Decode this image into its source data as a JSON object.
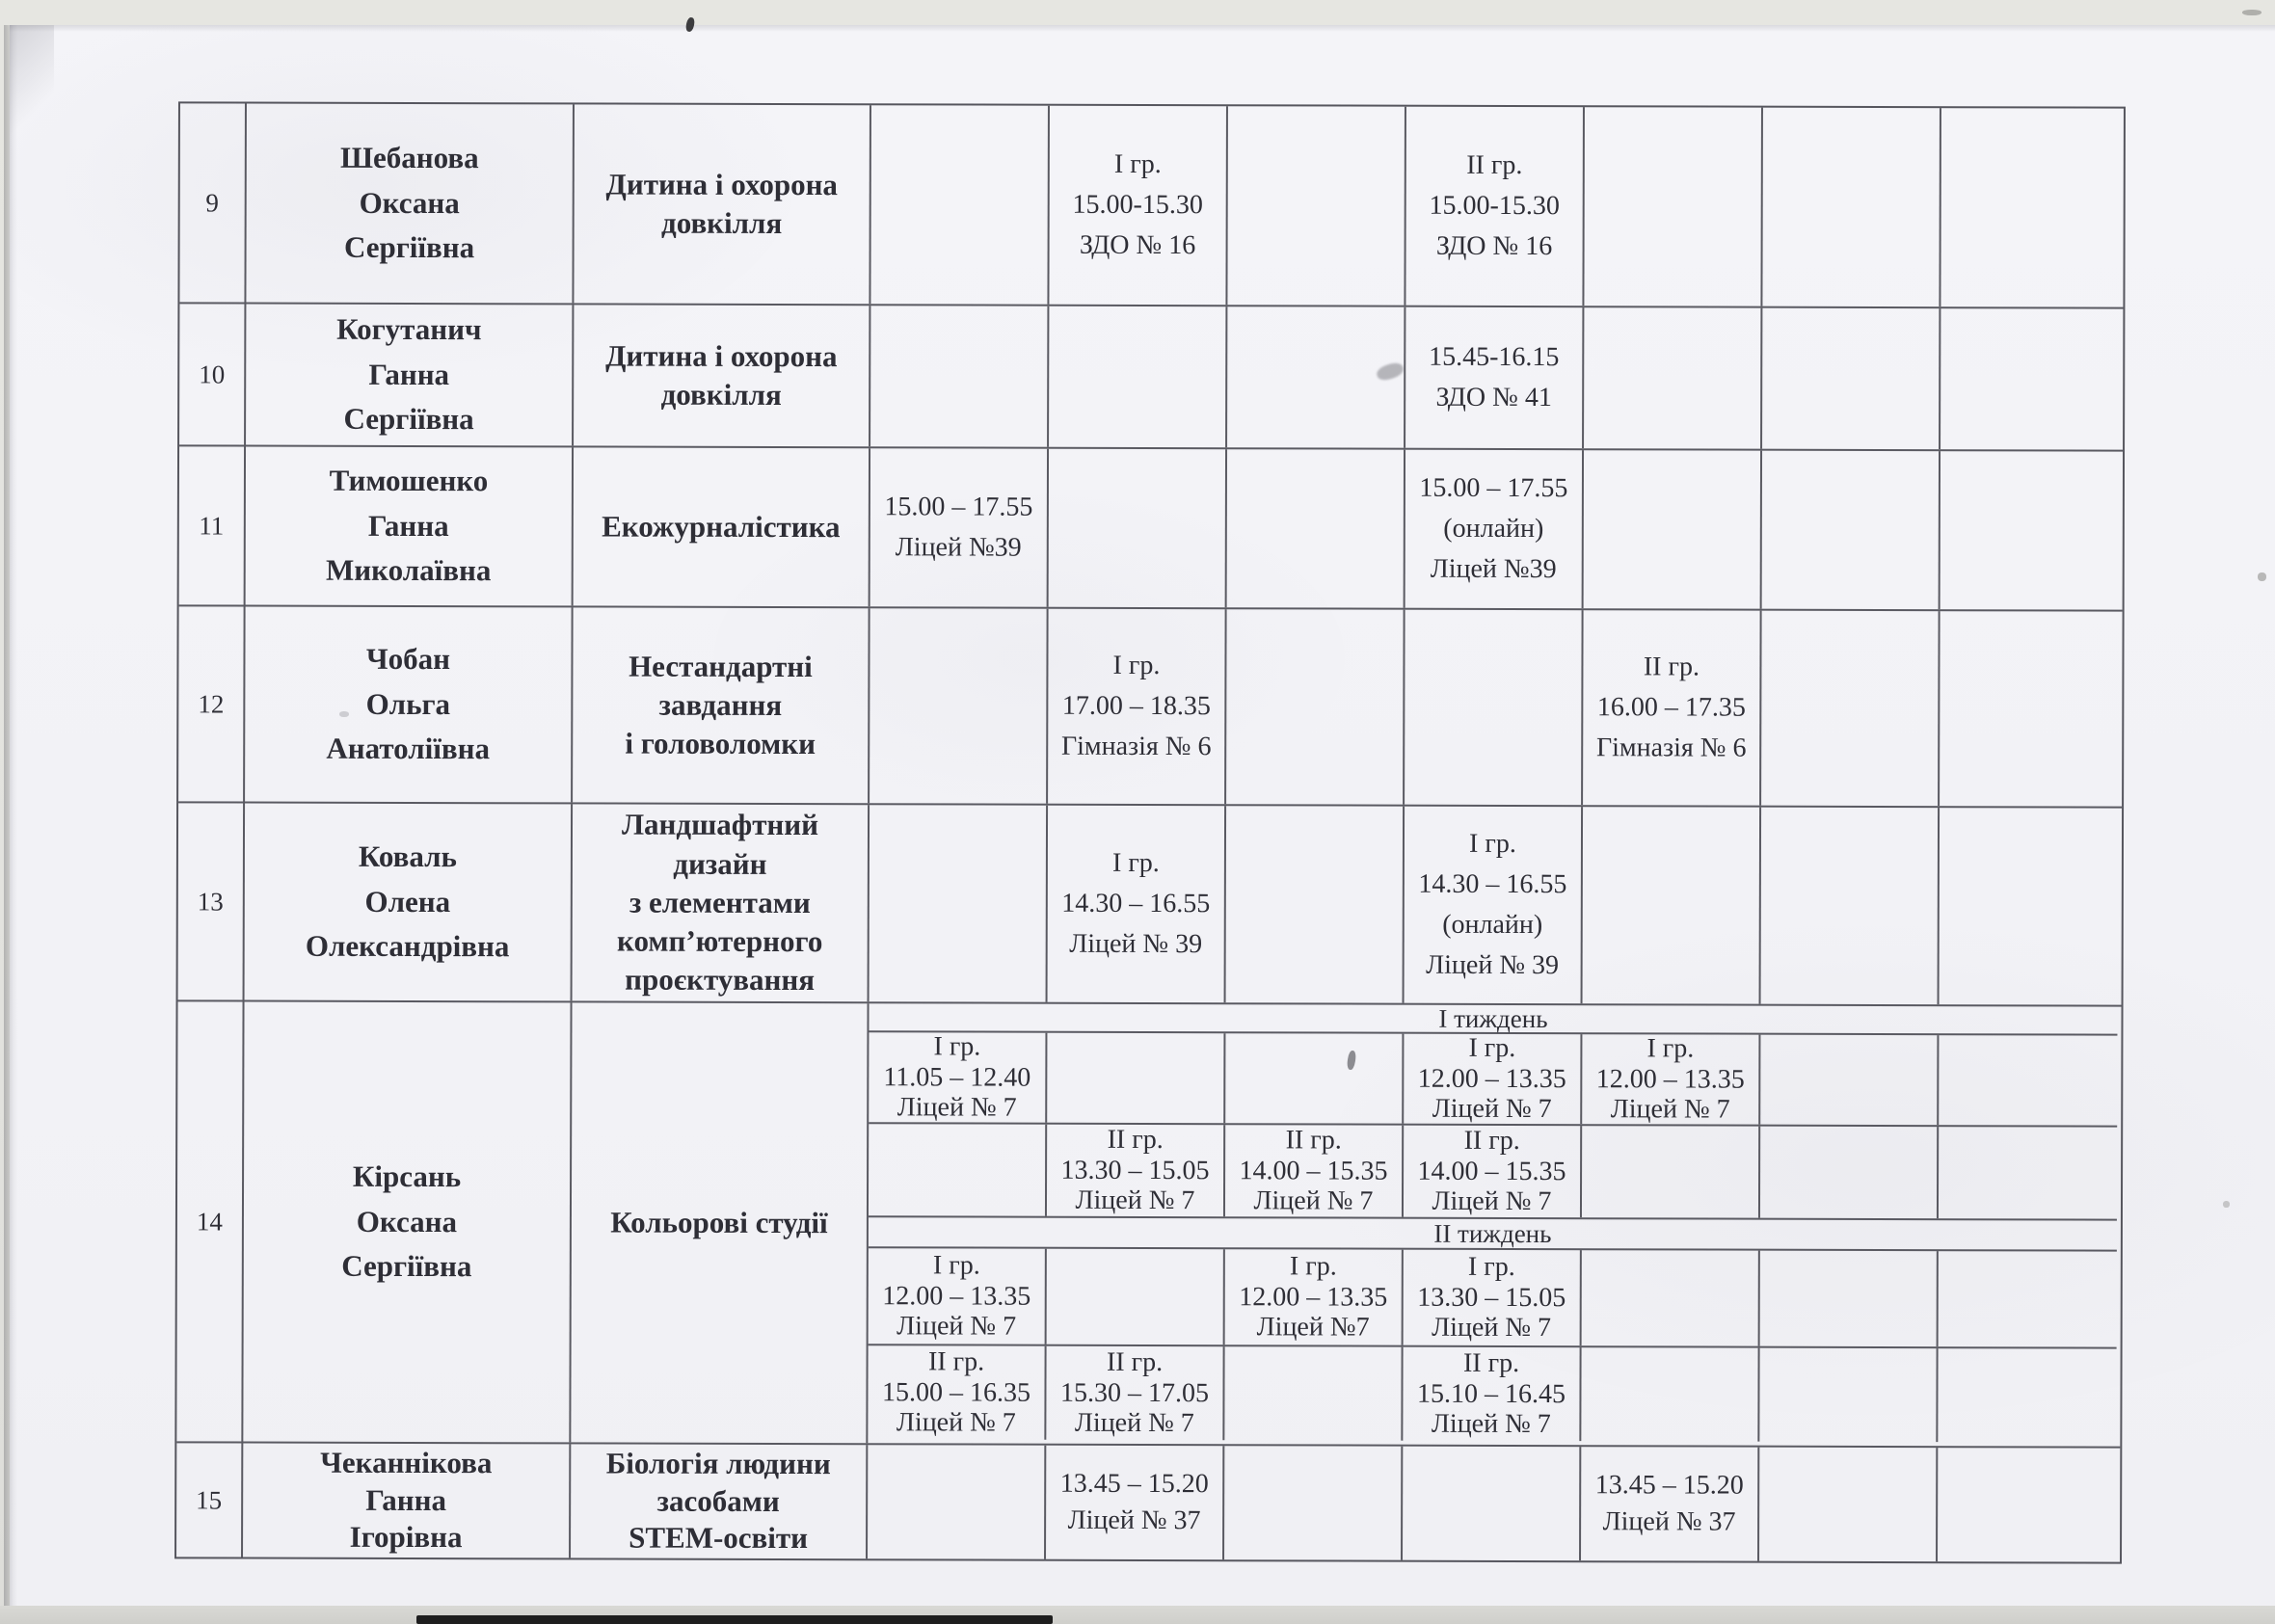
{
  "colors": {
    "paper": "#f2f2f6",
    "ink": "#2e2e36",
    "grid_line": "#5a5a62"
  },
  "table": {
    "rows": [
      {
        "num": "9",
        "name": [
          "Шебанова",
          "Оксана",
          "Сергіївна"
        ],
        "subject": [
          "Дитина і охорона",
          "довкілля"
        ],
        "entries": {
          "c2": [
            "I гр.",
            "15.00-15.30",
            "ЗДО № 16"
          ],
          "c4": [
            "II гр.",
            "15.00-15.30",
            "ЗДО № 16"
          ]
        }
      },
      {
        "num": "10",
        "name": [
          "Когутанич",
          "Ганна",
          "Сергіївна"
        ],
        "subject": [
          "Дитина і охорона",
          "довкілля"
        ],
        "entries": {
          "c4": [
            "15.45-16.15",
            "ЗДО № 41"
          ]
        }
      },
      {
        "num": "11",
        "name": [
          "Тимошенко",
          "Ганна",
          "Миколаївна"
        ],
        "subject": [
          "Екожурналістика"
        ],
        "entries": {
          "c1": [
            "15.00 – 17.55",
            "Ліцей №39"
          ],
          "c4": [
            "15.00 – 17.55",
            "(онлайн)",
            "Ліцей №39"
          ]
        }
      },
      {
        "num": "12",
        "name": [
          "Чобан",
          "Ольга",
          "Анатоліївна"
        ],
        "subject": [
          "Нестандартні",
          "завдання",
          "і головоломки"
        ],
        "entries": {
          "c2": [
            "I гр.",
            "17.00 – 18.35",
            "Гімназія № 6"
          ],
          "c5": [
            "II гр.",
            "16.00 – 17.35",
            "Гімназія № 6"
          ]
        }
      },
      {
        "num": "13",
        "name": [
          "Коваль",
          "Олена",
          "Олександрівна"
        ],
        "subject": [
          "Ландшафтний",
          "дизайн",
          "з елементами",
          "комп’ютерного",
          "проєктування"
        ],
        "entries": {
          "c2": [
            "I гр.",
            "14.30 – 16.55",
            "Ліцей № 39"
          ],
          "c4": [
            "I гр.",
            "14.30 – 16.55",
            "(онлайн)",
            "Ліцей № 39"
          ]
        }
      },
      {
        "num": "14",
        "name": [
          "Кірсань",
          "Оксана",
          "Сергіївна"
        ],
        "subject": [
          "Кольорові студії"
        ],
        "weeks": [
          {
            "label": "І тиждень",
            "subrows": [
              {
                "c1": [
                  "I гр.",
                  "11.05 – 12.40",
                  "Ліцей № 7"
                ],
                "c4": [
                  "I гр.",
                  "12.00 – 13.35",
                  "Ліцей № 7"
                ],
                "c5": [
                  "I гр.",
                  "12.00 – 13.35",
                  "Ліцей № 7"
                ]
              },
              {
                "c2": [
                  "II гр.",
                  "13.30 – 15.05",
                  "Ліцей № 7"
                ],
                "c3": [
                  "II гр.",
                  "14.00 – 15.35",
                  "Ліцей № 7"
                ],
                "c4": [
                  "II гр.",
                  "14.00 – 15.35",
                  "Ліцей № 7"
                ]
              }
            ]
          },
          {
            "label": "ІІ тиждень",
            "subrows": [
              {
                "c1": [
                  "I гр.",
                  "12.00 – 13.35",
                  "Ліцей № 7"
                ],
                "c3": [
                  "I гр.",
                  "12.00 – 13.35",
                  "Ліцей №7"
                ],
                "c4": [
                  "I гр.",
                  "13.30 – 15.05",
                  "Ліцей № 7"
                ]
              },
              {
                "c1": [
                  "II гр.",
                  "15.00 – 16.35",
                  "Ліцей № 7"
                ],
                "c2": [
                  "II гр.",
                  "15.30 – 17.05",
                  "Ліцей № 7"
                ],
                "c4": [
                  "II гр.",
                  "15.10 – 16.45",
                  "Ліцей № 7"
                ]
              }
            ]
          }
        ]
      },
      {
        "num": "15",
        "name": [
          "Чеканнікова",
          "Ганна",
          "Ігорівна"
        ],
        "subject": [
          "Біологія людини",
          "засобами",
          "STEM-освіти"
        ],
        "entries": {
          "c2": [
            "13.45 – 15.20",
            "Ліцей № 37"
          ],
          "c5": [
            "13.45 – 15.20",
            "Ліцей № 37"
          ]
        }
      }
    ]
  }
}
